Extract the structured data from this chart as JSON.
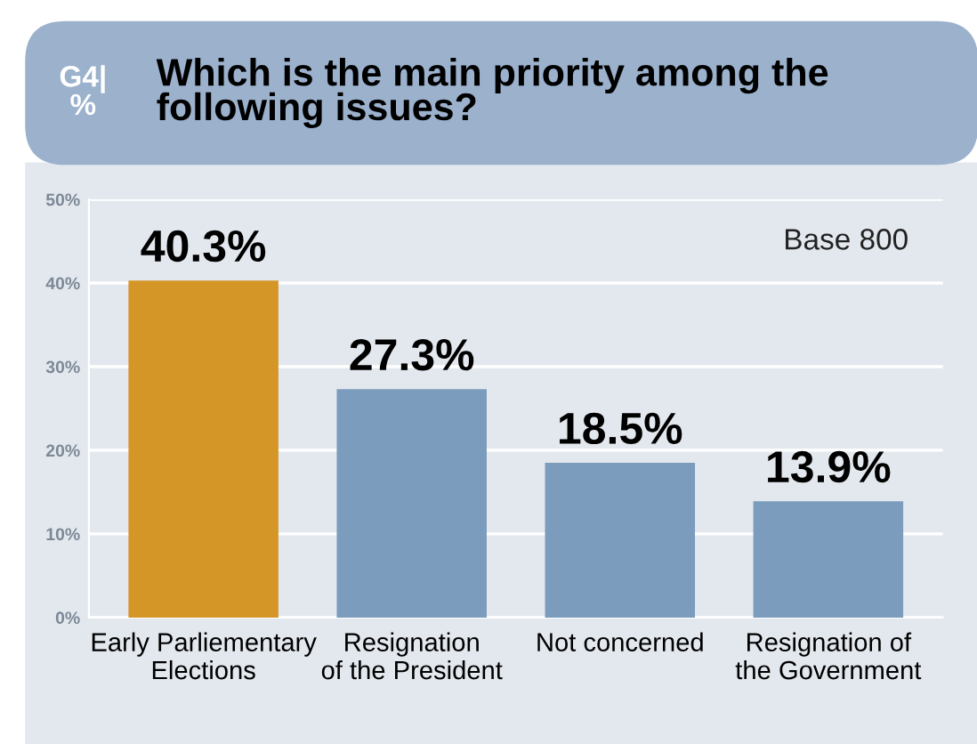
{
  "chart_data": {
    "type": "bar",
    "title": "Which is the main priority among the following issues?",
    "annotations": [
      "G4|\n%",
      "Base 800"
    ],
    "categories": [
      "Early Parliementary\nElections",
      "Resignation\nof the President",
      "Not concerned",
      "Resignation of\nthe Government"
    ],
    "values": [
      40.3,
      27.3,
      18.5,
      13.9
    ],
    "colors": [
      "#d59628",
      "#7b9cbc",
      "#7b9cbc",
      "#7b9cbc"
    ],
    "value_labels": [
      "40.3%",
      "27.3%",
      "18.5%",
      "13.9%"
    ],
    "ylim": [
      0,
      50
    ],
    "yticks": [
      {
        "value": 0,
        "label": "0%"
      },
      {
        "value": 10,
        "label": "10%"
      },
      {
        "value": 20,
        "label": "20%"
      },
      {
        "value": 30,
        "label": "30%"
      },
      {
        "value": 40,
        "label": "40%"
      },
      {
        "value": 50,
        "label": "50%"
      }
    ],
    "grid": "y"
  }
}
